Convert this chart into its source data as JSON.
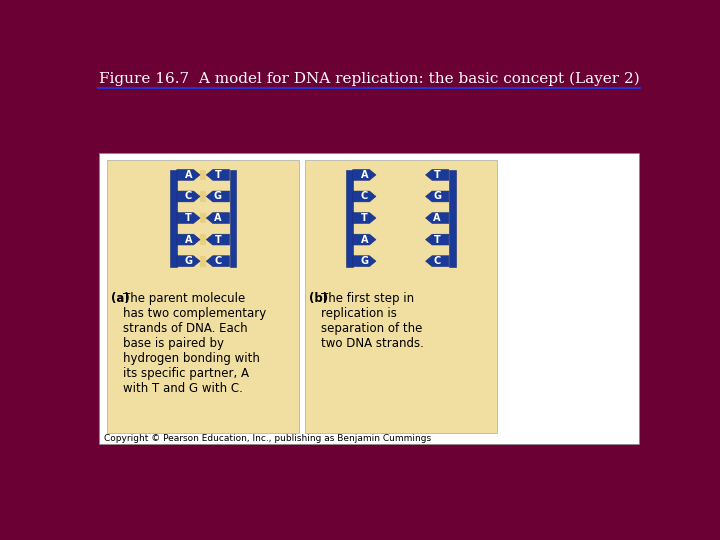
{
  "title": "Figure 16.7  A model for DNA replication: the basic concept (Layer 2)",
  "title_color": "#FFFFFF",
  "title_fontsize": 11,
  "bg_color": "#6B0035",
  "header_line_color": "#2233cc",
  "white_panel_bg": "#FFFFFF",
  "yellow_box_color": "#F0DFA0",
  "yellow_box_border": "#AAAAAA",
  "dna_blue": "#1a3a99",
  "base_pairs": [
    [
      "A",
      "T"
    ],
    [
      "C",
      "G"
    ],
    [
      "T",
      "A"
    ],
    [
      "A",
      "T"
    ],
    [
      "G",
      "C"
    ]
  ],
  "text_a_label": "(a)",
  "text_a_body": "The parent molecule\nhas two complementary\nstrands of DNA. Each\nbase is paired by\nhydrogen bonding with\nits specific partner, A\nwith T and G with C.",
  "text_b_label": "(b)",
  "text_b_body": "The first step in\nreplication is\nseparation of the\ntwo DNA strands.",
  "copyright": "Copyright © Pearson Education, Inc., publishing as Benjamin Cummings"
}
